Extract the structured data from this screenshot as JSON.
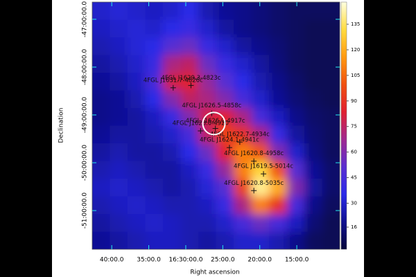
{
  "chart_data": {
    "type": "heatmap",
    "x_label": "Right ascension",
    "y_label": "Declination",
    "xlim": [
      250.66,
      242.3
    ],
    "ylim": [
      -51.81,
      -46.64
    ],
    "xticks": [
      {
        "value": 250,
        "label": "40:00.0"
      },
      {
        "value": 248.75,
        "label": "35:00.0"
      },
      {
        "value": 247.5,
        "label": "16:30:00.0"
      },
      {
        "value": 246.25,
        "label": "25:00.0"
      },
      {
        "value": 245,
        "label": "20:00.0"
      },
      {
        "value": 243.75,
        "label": "15:00.0"
      }
    ],
    "yticks": [
      {
        "value": -47,
        "label": "-47:00:00.0"
      },
      {
        "value": -48,
        "label": "-48:00:00.0"
      },
      {
        "value": -49,
        "label": "-49:00:00.0"
      },
      {
        "value": -50,
        "label": "-50:00:00.0"
      },
      {
        "value": -51,
        "label": "-51:00:00.0"
      }
    ],
    "clim": [
      3,
      148
    ],
    "cticks": [
      16,
      30,
      45,
      60,
      75,
      90,
      105,
      120,
      135
    ],
    "colormap": [
      "#05053a",
      "#101090",
      "#2a2ae8",
      "#5a2ed0",
      "#a02890",
      "#e02030",
      "#f05010",
      "#ff9a10",
      "#ffdc40",
      "#ffffe0"
    ],
    "z": [
      [
        30,
        32,
        30,
        28,
        30,
        35,
        25,
        20,
        18,
        15,
        12,
        10,
        10,
        10
      ],
      [
        28,
        30,
        32,
        30,
        35,
        40,
        30,
        22,
        18,
        15,
        12,
        10,
        8,
        8
      ],
      [
        25,
        28,
        32,
        35,
        50,
        55,
        40,
        30,
        22,
        18,
        14,
        10,
        8,
        8
      ],
      [
        22,
        25,
        30,
        40,
        70,
        75,
        55,
        40,
        30,
        22,
        15,
        10,
        8,
        8
      ],
      [
        20,
        22,
        28,
        45,
        80,
        85,
        65,
        50,
        35,
        25,
        18,
        12,
        8,
        8
      ],
      [
        18,
        20,
        25,
        35,
        60,
        75,
        70,
        60,
        45,
        30,
        20,
        14,
        10,
        8
      ],
      [
        18,
        20,
        22,
        28,
        40,
        60,
        80,
        85,
        70,
        45,
        28,
        18,
        12,
        10
      ],
      [
        20,
        22,
        22,
        25,
        30,
        45,
        75,
        95,
        90,
        70,
        40,
        22,
        14,
        10
      ],
      [
        22,
        25,
        22,
        22,
        25,
        35,
        55,
        85,
        110,
        100,
        60,
        30,
        16,
        10
      ],
      [
        25,
        28,
        25,
        22,
        22,
        28,
        40,
        65,
        110,
        130,
        100,
        50,
        20,
        12
      ],
      [
        28,
        30,
        28,
        25,
        22,
        25,
        32,
        50,
        95,
        140,
        120,
        60,
        22,
        12
      ],
      [
        25,
        28,
        30,
        28,
        25,
        25,
        28,
        40,
        70,
        110,
        90,
        45,
        18,
        10
      ],
      [
        22,
        25,
        28,
        30,
        28,
        25,
        25,
        30,
        45,
        55,
        45,
        28,
        14,
        8
      ],
      [
        20,
        22,
        25,
        28,
        28,
        25,
        22,
        25,
        30,
        30,
        25,
        18,
        10,
        8
      ]
    ],
    "sources": [
      {
        "label": "4FGL J1629.3-4823c",
        "ra": 247.325,
        "dec": -48.383
      },
      {
        "label": "4FGL J1631.7-4826c",
        "ra": 247.925,
        "dec": -48.433
      },
      {
        "label": "4FGL J1626.5-4858c",
        "ra": 246.625,
        "dec": -48.967
      },
      {
        "label": "4FGL J1626.0-4917c",
        "ra": 246.5,
        "dec": -49.283
      },
      {
        "label": "4FGL J1628.0-4920",
        "ra": 247.0,
        "dec": -49.333
      },
      {
        "label": "4FGL J1622.7-4934c",
        "ra": 245.675,
        "dec": -49.567
      },
      {
        "label": "4FGL J1624.1-4941c",
        "ra": 246.025,
        "dec": -49.683
      },
      {
        "label": "4FGL J1620.8-4958c",
        "ra": 245.2,
        "dec": -49.967
      },
      {
        "label": "4FGL J1619.5-5014c",
        "ra": 244.875,
        "dec": -50.233
      },
      {
        "label": "4FGL J1620.8-5035c",
        "ra": 245.2,
        "dec": -50.583
      }
    ],
    "region": {
      "ra": 246.55,
      "dec": -49.18
    }
  }
}
